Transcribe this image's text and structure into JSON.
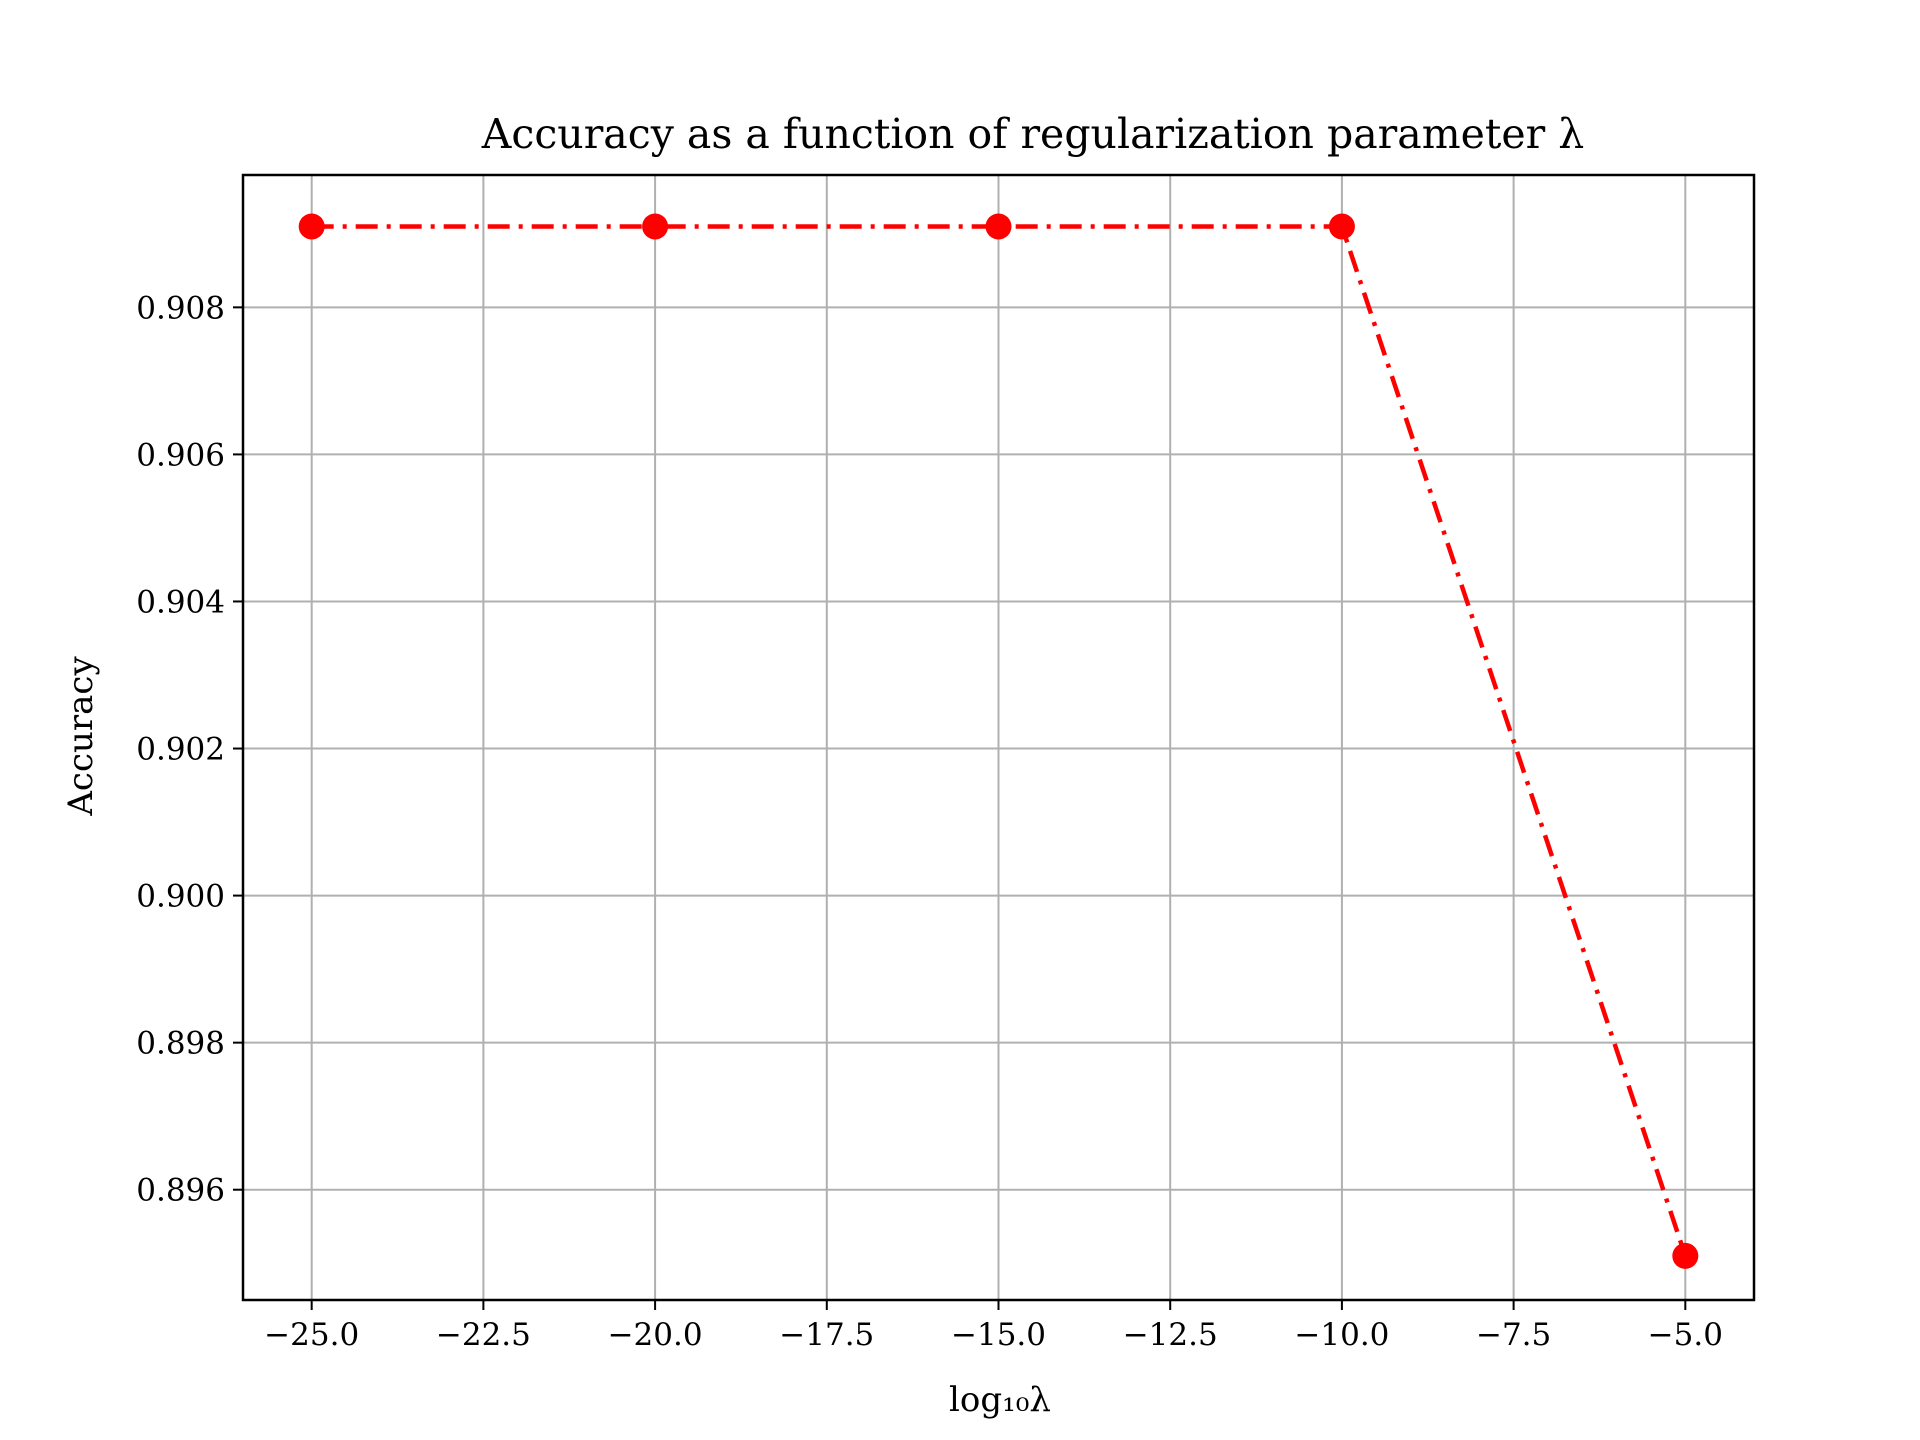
{
  "chart_data": {
    "type": "line",
    "title": "Accuracy as a function of regularization parameter λ",
    "xlabel": "log₁₀λ",
    "ylabel": "Accuracy",
    "xlim": [
      -26.0,
      -4.0
    ],
    "ylim": [
      0.8945,
      0.9098
    ],
    "xticks": [
      -25.0,
      -22.5,
      -20.0,
      -17.5,
      -15.0,
      -12.5,
      -10.0,
      -7.5,
      -5.0
    ],
    "xtick_labels": [
      "−25.0",
      "−22.5",
      "−20.0",
      "−17.5",
      "−15.0",
      "−12.5",
      "−10.0",
      "−7.5",
      "−5.0"
    ],
    "yticks": [
      0.896,
      0.898,
      0.9,
      0.902,
      0.904,
      0.906,
      0.908
    ],
    "ytick_labels": [
      "0.896",
      "0.898",
      "0.900",
      "0.902",
      "0.904",
      "0.906",
      "0.908"
    ],
    "grid": true,
    "series": [
      {
        "x": [
          -25,
          -20,
          -15,
          -10,
          -5
        ],
        "y": [
          0.9091,
          0.9091,
          0.9091,
          0.9091,
          0.8951
        ],
        "color": "#ff0000",
        "linestyle": "dashdot",
        "marker": "circle"
      }
    ]
  }
}
